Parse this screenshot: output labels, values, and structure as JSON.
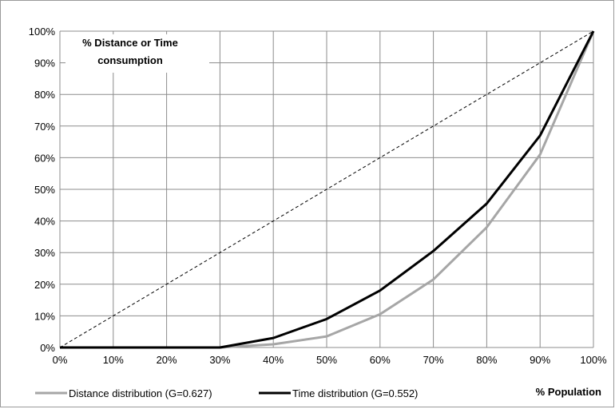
{
  "chart_data": {
    "type": "line",
    "title": "",
    "ylabel": "% Distance or Time consumption",
    "ylabel_lines": [
      "% Distance or Time",
      "consumption"
    ],
    "xlabel": "% Population",
    "x": [
      0,
      10,
      20,
      30,
      40,
      50,
      60,
      70,
      80,
      90,
      100
    ],
    "xlim": [
      0,
      100
    ],
    "ylim": [
      0,
      100
    ],
    "x_ticks": [
      "0%",
      "10%",
      "20%",
      "30%",
      "40%",
      "50%",
      "60%",
      "70%",
      "80%",
      "90%",
      "100%"
    ],
    "y_ticks": [
      "0%",
      "10%",
      "20%",
      "30%",
      "40%",
      "50%",
      "60%",
      "70%",
      "80%",
      "90%",
      "100%"
    ],
    "grid": true,
    "legend_position": "bottom",
    "equality_line": {
      "x": [
        0,
        100
      ],
      "y": [
        0,
        100
      ],
      "style": "dashed",
      "color": "#000000"
    },
    "series": [
      {
        "name": "Distance distribution (G=0.627)",
        "color": "#a6a6a6",
        "values": [
          0,
          0,
          0,
          0,
          1,
          3.5,
          10.5,
          21.5,
          38,
          61,
          100
        ]
      },
      {
        "name": "Time distribution (G=0.552)",
        "color": "#000000",
        "values": [
          0,
          0,
          0,
          0,
          3,
          9,
          18,
          30.5,
          45.5,
          67,
          100
        ]
      }
    ]
  }
}
